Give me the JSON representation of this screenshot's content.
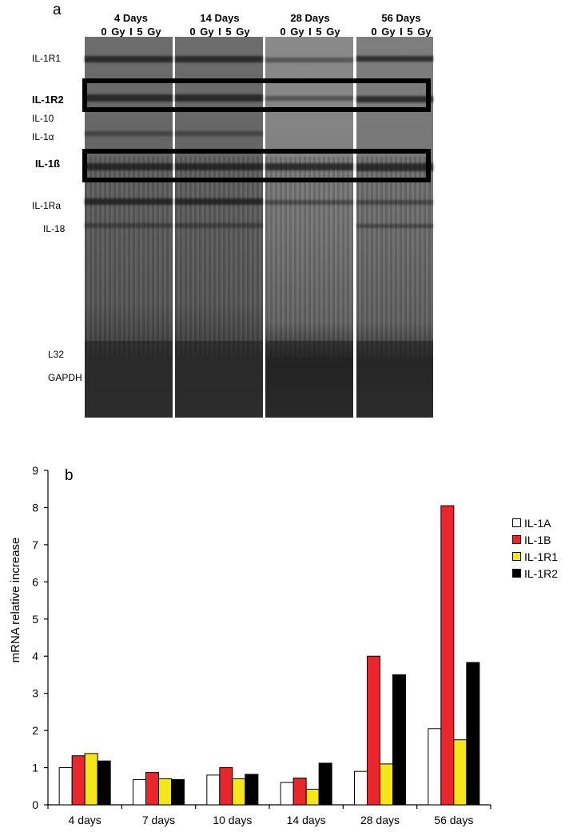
{
  "panel_a": {
    "letter": "a",
    "columns": [
      {
        "title": "4 Days",
        "sub": "0 Gy  I  5 Gy"
      },
      {
        "title": "14 Days",
        "sub": "0 Gy  I  5 Gy"
      },
      {
        "title": "28 Days",
        "sub": "0 Gy  I  5 Gy"
      },
      {
        "title": "56 Days",
        "sub": "0 Gy  I  5 Gy"
      }
    ],
    "genes": [
      {
        "label": "IL-1R1",
        "bold": false
      },
      {
        "label": "IL-1R2",
        "bold": true
      },
      {
        "label": "IL-10",
        "bold": false
      },
      {
        "label": "IL-1α",
        "bold": false
      },
      {
        "label": "IL-1ß",
        "bold": true
      },
      {
        "label": "IL-1Ra",
        "bold": false
      },
      {
        "label": "IL-18",
        "bold": false
      },
      {
        "label": "L32",
        "bold": false
      },
      {
        "label": "GAPDH",
        "bold": false
      }
    ]
  },
  "chart_data": {
    "type": "bar",
    "panel_letter": "b",
    "title": "",
    "xlabel": "",
    "ylabel": "mRNA relative increase",
    "ylim": [
      0,
      9
    ],
    "yticks": [
      0,
      1,
      2,
      3,
      4,
      5,
      6,
      7,
      8,
      9
    ],
    "categories": [
      "4 days",
      "7 days",
      "10 days",
      "14 days",
      "28 days",
      "56 days"
    ],
    "series": [
      {
        "name": "IL-1A",
        "color": "#ffffff",
        "values": [
          1.0,
          0.68,
          0.8,
          0.6,
          0.9,
          2.05
        ]
      },
      {
        "name": "IL-1B",
        "color": "#e8262b",
        "values": [
          1.32,
          0.87,
          1.0,
          0.72,
          4.0,
          8.05
        ]
      },
      {
        "name": "IL-1R1",
        "color": "#f5e51b",
        "values": [
          1.38,
          0.7,
          0.7,
          0.42,
          1.1,
          1.75
        ]
      },
      {
        "name": "IL-1R2",
        "color": "#000000",
        "values": [
          1.18,
          0.68,
          0.82,
          1.12,
          3.5,
          3.83
        ]
      }
    ],
    "legend_position": "right",
    "grid": false
  }
}
